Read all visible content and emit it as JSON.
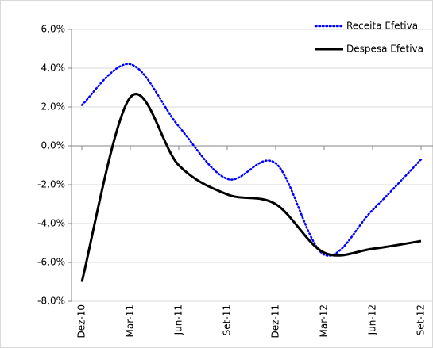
{
  "chart_data": {
    "type": "line",
    "categories": [
      "Dez-10",
      "Mar-11",
      "Jun-11",
      "Set-11",
      "Dez-11",
      "Mar-12",
      "Jun-12",
      "Set-12"
    ],
    "series": [
      {
        "name": "Receita Efetiva",
        "color": "#0000ff",
        "dash": "dotted",
        "values": [
          2.1,
          4.2,
          1.0,
          -1.7,
          -0.9,
          -5.6,
          -3.3,
          -0.7
        ]
      },
      {
        "name": "Despesa Efetiva",
        "color": "#000000",
        "dash": "solid",
        "values": [
          -7.0,
          2.5,
          -1.0,
          -2.5,
          -3.0,
          -5.5,
          -5.3,
          -4.9
        ]
      }
    ],
    "ylim": [
      -8,
      6
    ],
    "yticks": [
      {
        "value": -8,
        "label": "-8,0%"
      },
      {
        "value": -6,
        "label": "-6,0%"
      },
      {
        "value": -4,
        "label": "-4,0%"
      },
      {
        "value": -2,
        "label": "-2,0%"
      },
      {
        "value": 0,
        "label": "0,0%"
      },
      {
        "value": 2,
        "label": "2,0%"
      },
      {
        "value": 4,
        "label": "4,0%"
      },
      {
        "value": 6,
        "label": "6,0%"
      }
    ],
    "grid": true,
    "legend": "top-right"
  }
}
